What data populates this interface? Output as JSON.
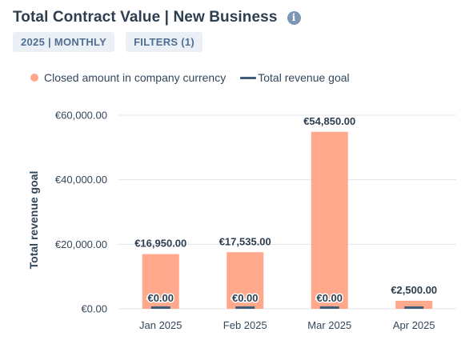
{
  "header": {
    "title": "Total Contract Value | New Business",
    "info_icon": "info-icon",
    "date_filter": "2025 | MONTHLY",
    "filters": "FILTERS (1)"
  },
  "legend": {
    "bars_label": "Closed amount in company currency",
    "line_label": "Total revenue goal"
  },
  "colors": {
    "bar": "#ffa88c",
    "goal": "#425b76",
    "grid": "#dfe3eb"
  },
  "chart_data": {
    "type": "bar",
    "ylabel": "Total revenue goal",
    "ylim": [
      0,
      60000
    ],
    "yticks": [
      {
        "value": 0,
        "label": "€0.00"
      },
      {
        "value": 20000,
        "label": "€20,000.00"
      },
      {
        "value": 40000,
        "label": "€40,000.00"
      },
      {
        "value": 60000,
        "label": "€60,000.00"
      }
    ],
    "categories": [
      "Jan 2025",
      "Feb 2025",
      "Mar 2025",
      "Apr 2025"
    ],
    "series": [
      {
        "name": "Closed amount in company currency",
        "type": "bar",
        "values": [
          16950,
          17535,
          54850,
          2500
        ],
        "labels": [
          "€16,950.00",
          "€17,535.00",
          "€54,850.00",
          "€2,500.00"
        ]
      },
      {
        "name": "Total revenue goal",
        "type": "line",
        "values": [
          0,
          0,
          0,
          0
        ],
        "labels": [
          "€0.00",
          "€0.00",
          "€0.00",
          ""
        ]
      }
    ],
    "grid": true,
    "legend_position": "top-left"
  }
}
